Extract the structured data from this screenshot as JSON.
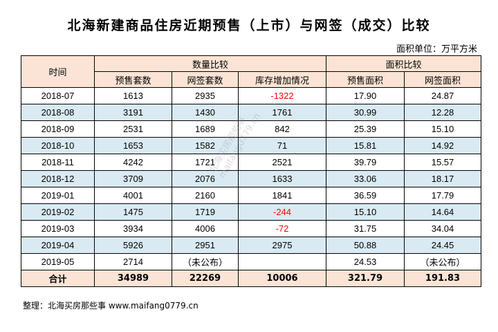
{
  "title": "北海新建商品住房近期预售（上市）与网签（成交）比较",
  "unit_note": "面积单位：万平方米",
  "header": {
    "time": "时间",
    "group_count": "数量比较",
    "group_area": "面积比较",
    "presale_units": "预售套数",
    "signed_units": "网签套数",
    "inventory_change": "库存增加情况",
    "presale_area": "预售面积",
    "signed_area": "网签面积"
  },
  "rows": [
    {
      "time": "2018-07",
      "presale_units": "1613",
      "signed_units": "2935",
      "inventory": "-1322",
      "presale_area": "17.90",
      "signed_area": "24.87"
    },
    {
      "time": "2018-08",
      "presale_units": "3191",
      "signed_units": "1430",
      "inventory": "1761",
      "presale_area": "30.99",
      "signed_area": "12.28"
    },
    {
      "time": "2018-09",
      "presale_units": "2531",
      "signed_units": "1689",
      "inventory": "842",
      "presale_area": "25.39",
      "signed_area": "15.10"
    },
    {
      "time": "2018-10",
      "presale_units": "1653",
      "signed_units": "1582",
      "inventory": "71",
      "presale_area": "15.81",
      "signed_area": "14.92"
    },
    {
      "time": "2018-11",
      "presale_units": "4242",
      "signed_units": "1721",
      "inventory": "2521",
      "presale_area": "39.79",
      "signed_area": "15.57"
    },
    {
      "time": "2018-12",
      "presale_units": "3709",
      "signed_units": "2076",
      "inventory": "1633",
      "presale_area": "33.06",
      "signed_area": "18.17"
    },
    {
      "time": "2019-01",
      "presale_units": "4001",
      "signed_units": "2160",
      "inventory": "1841",
      "presale_area": "36.59",
      "signed_area": "17.79"
    },
    {
      "time": "2019-02",
      "presale_units": "1475",
      "signed_units": "1719",
      "inventory": "-244",
      "presale_area": "15.10",
      "signed_area": "14.64"
    },
    {
      "time": "2019-03",
      "presale_units": "3934",
      "signed_units": "4006",
      "inventory": "-72",
      "presale_area": "31.75",
      "signed_area": "34.04"
    },
    {
      "time": "2019-04",
      "presale_units": "5926",
      "signed_units": "2951",
      "inventory": "2975",
      "presale_area": "50.88",
      "signed_area": "24.45"
    },
    {
      "time": "2019-05",
      "presale_units": "2714",
      "signed_units": "（未公布）",
      "inventory": "",
      "presale_area": "24.53",
      "signed_area": "（未公布）"
    }
  ],
  "total": {
    "label": "合计",
    "presale_units": "34989",
    "signed_units": "22269",
    "inventory": "10006",
    "presale_area": "321.79",
    "signed_area": "191.83"
  },
  "note": "整理：北海买房那些事 www.maifang0779.cn",
  "watermark": {
    "line1": "北海买房那些事",
    "line2": "maifang0779.cn"
  },
  "colors": {
    "header_bg": "#fbe4d5",
    "band_bg": "#d9eaf3",
    "negative": "#ff0000"
  }
}
